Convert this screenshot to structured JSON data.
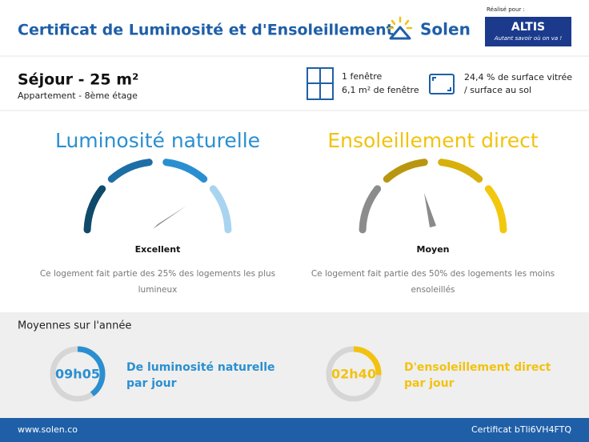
{
  "header": {
    "title": "Certificat de Luminosité et d'Ensoleillement",
    "brand": "Solen",
    "made_for": "Réalisé pour :",
    "partner": "ALTIS",
    "partner_tagline": "Autant savoir où on va !"
  },
  "room": {
    "name": "Séjour - 25 m²",
    "subtitle": "Appartement - 8ème étage",
    "windows": [
      "1 fenêtre",
      "6,1 m² de fenêtre"
    ],
    "glazing": [
      "24,4 % de surface vitrée",
      "/ surface au sol"
    ]
  },
  "luminosity": {
    "title": "Luminosité naturelle",
    "rating": "Excellent",
    "description": [
      "Ce logement fait partie des 25% des logements les plus",
      "lumineux"
    ]
  },
  "sunlight": {
    "title": "Ensoleillement direct",
    "rating": "Moyen",
    "description": [
      "Ce logement fait partie des 50% des logements les moins",
      "ensoleillés"
    ]
  },
  "averages": {
    "title": "Moyennes sur l'année",
    "luminosity": {
      "time": "09h05",
      "label": [
        "De luminosité naturelle",
        "par jour"
      ]
    },
    "sunlight": {
      "time": "02h40",
      "label": [
        "D'ensoleillement direct",
        "par jour"
      ]
    }
  },
  "footer": {
    "website": "www.solen.co",
    "certificate": "Certificat bTli6VH4FTQ"
  }
}
